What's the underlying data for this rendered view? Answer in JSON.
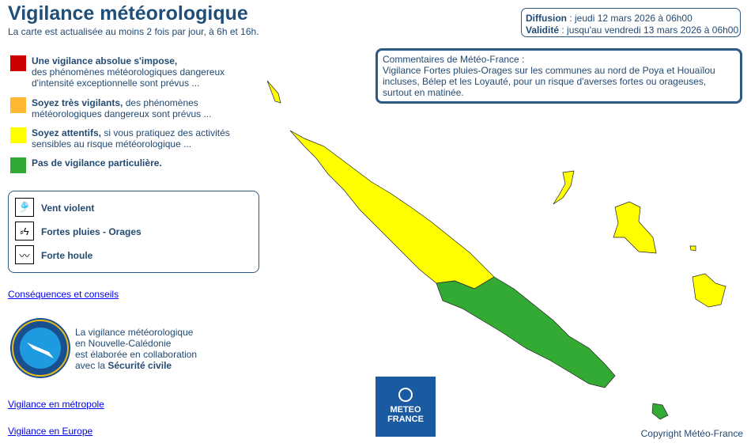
{
  "header": {
    "title": "Vigilance météorologique",
    "subtitle": "La carte est actualisée au moins 2 fois par jour, à 6h et 16h."
  },
  "legend": [
    {
      "color": "#cc0000",
      "bold": "Une vigilance absolue s'impose,",
      "text": "des phénomènes météorologiques dangereux d'intensité exceptionnelle sont prévus ..."
    },
    {
      "color": "#ffb833",
      "bold": "Soyez très vigilants,",
      "text": " des phénomènes météorologiques dangereux sont prévus ..."
    },
    {
      "color": "#ffff00",
      "bold": "Soyez attentifs,",
      "text": " si vous pratiquez des activités sensibles au risque météorologique ..."
    },
    {
      "color": "#33aa33",
      "bold": "Pas de vigilance particulière.",
      "text": ""
    }
  ],
  "phenomena": [
    {
      "icon": "wind-icon",
      "label": "Vent violent"
    },
    {
      "icon": "rain-storm-icon",
      "label": "Fortes pluies - Orages"
    },
    {
      "icon": "wave-icon",
      "label": "Forte houle"
    }
  ],
  "links": {
    "consequences": "Conséquences et conseils",
    "metropole": "Vigilance en métropole",
    "europe": "Vigilance en Europe"
  },
  "securite": {
    "logo_text": "SÉCURITÉ CIVILE NOUVELLE-CALÉDONIE",
    "l1": "La vigilance météorologique",
    "l2": "en Nouvelle-Calédonie",
    "l3": "est élaborée en collaboration",
    "l4_pre": "avec la ",
    "l4_bold": "Sécurité civile"
  },
  "info": {
    "diffusion_label": "Diffusion",
    "diffusion": " : jeudi 12 mars 2026 à 06h00",
    "validite_label": "Validité",
    "validite": " : jusqu'au vendredi 13 mars 2026 à 06h00"
  },
  "comment": {
    "title": "Commentaires de Météo-France :",
    "text": "Vigilance Fortes pluies-Orages sur les communes au nord de Poya et Houaïlou incluses, Bélep et les Loyauté, pour un risque d'averses fortes ou orageuses, surtout en matinée."
  },
  "map": {
    "north_level": "#ffff00",
    "south_level": "#33aa33",
    "loyalty_level": "#ffff00",
    "ile_des_pins_level": "#33aa33"
  },
  "logo": {
    "line1": "METEO",
    "line2": "FRANCE"
  },
  "copyright": "Copyright Météo-France"
}
